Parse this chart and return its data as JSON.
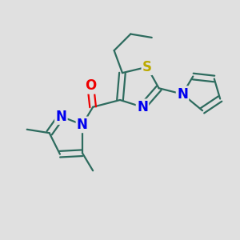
{
  "background_color": "#e0e0e0",
  "bond_color": "#2d6b5e",
  "atom_colors": {
    "N": "#0000ee",
    "O": "#ee0000",
    "S": "#bbaa00",
    "C": "#2d6b5e"
  },
  "font_size": 12
}
